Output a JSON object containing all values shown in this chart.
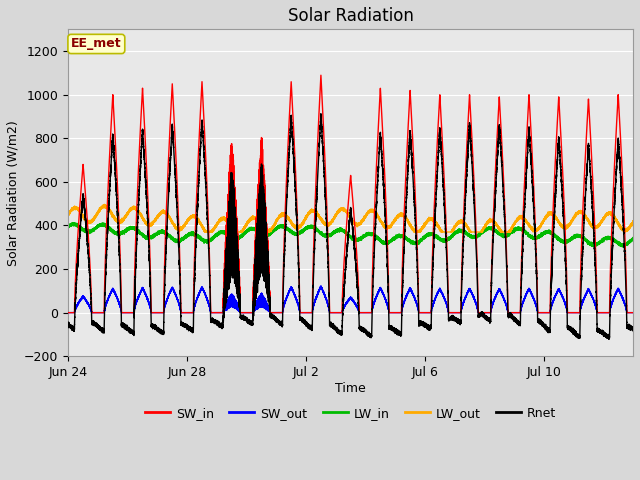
{
  "title": "Solar Radiation",
  "xlabel": "Time",
  "ylabel": "Solar Radiation (W/m2)",
  "annotation": "EE_met",
  "ylim": [
    -200,
    1300
  ],
  "yticks": [
    -200,
    0,
    200,
    400,
    600,
    800,
    1000,
    1200
  ],
  "n_days": 19,
  "SW_in_color": "#ff0000",
  "SW_out_color": "#0000ff",
  "LW_in_color": "#00bb00",
  "LW_out_color": "#ffaa00",
  "Rnet_color": "#000000",
  "linewidth": 1.0,
  "legend_entries": [
    "SW_in",
    "SW_out",
    "LW_in",
    "LW_out",
    "Rnet"
  ],
  "legend_colors": [
    "#ff0000",
    "#0000ff",
    "#00bb00",
    "#ffaa00",
    "#000000"
  ],
  "background_color": "#e8e8e8",
  "grid_color": "#ffffff",
  "title_fontsize": 12,
  "label_fontsize": 9,
  "tick_fontsize": 9,
  "xtick_positions": [
    0,
    4,
    8,
    12,
    16
  ],
  "xtick_labels": [
    "Jun 24",
    "Jun 28",
    "Jul 2",
    "Jul 6",
    "Jul 10"
  ],
  "peaks_SW": [
    680,
    1000,
    1030,
    1050,
    1060,
    820,
    830,
    1060,
    1090,
    630,
    1030,
    1020,
    1000,
    1000,
    990,
    1000,
    990,
    980,
    1000
  ]
}
